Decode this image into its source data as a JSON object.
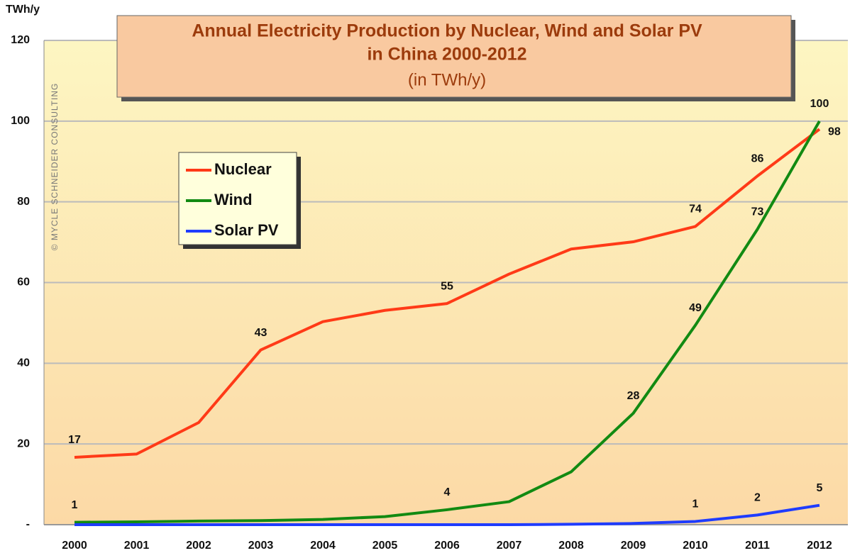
{
  "chart_data": {
    "type": "line",
    "title": "Annual Electricity Production by Nuclear, Wind and Solar PV",
    "title_line2": "in China 2000-2012",
    "subtitle": "(in TWh/y)",
    "y_axis_label": "TWh/y",
    "watermark": "© MYCLE SCHNEIDER CONSULTING",
    "categories": [
      "2000",
      "2001",
      "2002",
      "2003",
      "2004",
      "2005",
      "2006",
      "2007",
      "2008",
      "2009",
      "2010",
      "2011",
      "2012"
    ],
    "series": [
      {
        "name": "Nuclear",
        "color": "#ff3a17",
        "values": [
          16.7,
          17.5,
          25.3,
          43.3,
          50.3,
          53.1,
          54.8,
          62.1,
          68.3,
          70.1,
          73.9,
          86.4,
          98.0
        ],
        "value_labels": [
          "17",
          null,
          null,
          "43",
          null,
          null,
          "55",
          null,
          null,
          null,
          "74",
          "86",
          "98"
        ]
      },
      {
        "name": "Wind",
        "color": "#128a12",
        "values": [
          0.6,
          0.7,
          0.9,
          1.0,
          1.3,
          2.0,
          3.7,
          5.7,
          13.1,
          27.6,
          49.4,
          73.2,
          100
        ],
        "value_labels": [
          "1",
          null,
          null,
          null,
          null,
          null,
          "4",
          null,
          null,
          "28",
          "49",
          "73",
          "100"
        ]
      },
      {
        "name": "Solar PV",
        "color": "#1f3cff",
        "values": [
          0,
          0,
          0,
          0,
          0,
          0,
          0,
          0,
          0.1,
          0.3,
          0.8,
          2.4,
          4.8
        ],
        "value_labels": [
          null,
          null,
          null,
          null,
          null,
          null,
          null,
          null,
          null,
          null,
          "1",
          "2",
          "5"
        ]
      }
    ],
    "ylim": [
      0,
      120
    ],
    "yticks": [
      {
        "value": 0,
        "label": "-"
      },
      20,
      40,
      60,
      80,
      100,
      120
    ],
    "grid": true,
    "legend": "upper-left"
  }
}
